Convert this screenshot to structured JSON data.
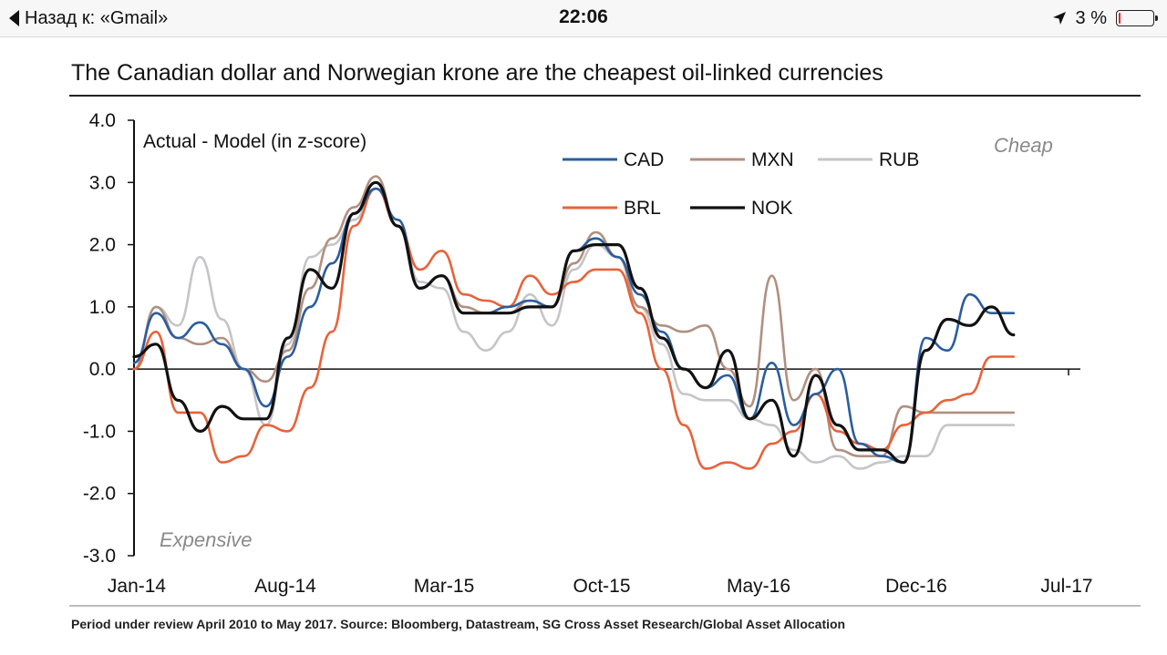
{
  "status_bar": {
    "back_label": "Назад к: «Gmail»",
    "time": "22:06",
    "battery": "3 %",
    "icons": [
      "back-chevron-icon",
      "location-arrow-icon",
      "battery-icon"
    ]
  },
  "chart_data": {
    "type": "line",
    "title": "The Canadian dollar and Norwegian krone are the cheapest oil-linked currencies",
    "ylabel": "Actual - Model (in z-score)",
    "xlabel": "",
    "ylim": [
      -3.0,
      4.0
    ],
    "xlim": [
      "2014-01",
      "2017-07"
    ],
    "y_ticks": [
      "4.0",
      "3.0",
      "2.0",
      "1.0",
      "0.0",
      "-1.0",
      "-2.0",
      "-3.0"
    ],
    "x_ticks": [
      "Jan-14",
      "Aug-14",
      "Mar-15",
      "Oct-15",
      "May-16",
      "Dec-16",
      "Jul-17"
    ],
    "annotations": {
      "top_right": "Cheap",
      "bottom_left": "Expensive"
    },
    "legend_position": "top-right",
    "grid": false,
    "x": [
      "2014-01",
      "2014-02",
      "2014-03",
      "2014-04",
      "2014-05",
      "2014-06",
      "2014-07",
      "2014-08",
      "2014-09",
      "2014-10",
      "2014-11",
      "2014-12",
      "2015-01",
      "2015-02",
      "2015-03",
      "2015-04",
      "2015-05",
      "2015-06",
      "2015-07",
      "2015-08",
      "2015-09",
      "2015-10",
      "2015-11",
      "2015-12",
      "2016-01",
      "2016-02",
      "2016-03",
      "2016-04",
      "2016-05",
      "2016-06",
      "2016-07",
      "2016-08",
      "2016-09",
      "2016-10",
      "2016-11",
      "2016-12",
      "2017-01",
      "2017-02",
      "2017-03",
      "2017-04",
      "2017-05"
    ],
    "series": [
      {
        "name": "CAD",
        "color": "#2a5d9e",
        "values": [
          0.1,
          0.9,
          0.5,
          0.75,
          0.4,
          0.0,
          -0.6,
          0.2,
          1.0,
          1.7,
          2.5,
          2.9,
          2.4,
          1.3,
          1.5,
          0.9,
          0.9,
          1.0,
          1.1,
          1.0,
          1.9,
          2.1,
          1.8,
          1.2,
          0.6,
          0.0,
          -0.3,
          -0.1,
          -0.8,
          0.1,
          -0.9,
          -0.4,
          0.0,
          -1.2,
          -1.4,
          -1.5,
          0.5,
          0.3,
          1.2,
          0.9,
          0.9
        ]
      },
      {
        "name": "MXN",
        "color": "#b09080",
        "values": [
          0.0,
          1.0,
          0.5,
          0.4,
          0.5,
          0.0,
          -0.2,
          0.3,
          1.3,
          2.1,
          2.6,
          3.1,
          2.3,
          1.3,
          1.5,
          1.0,
          0.9,
          0.9,
          1.1,
          1.0,
          1.7,
          2.2,
          1.8,
          1.0,
          0.7,
          0.6,
          0.7,
          0.0,
          -0.6,
          1.5,
          -0.5,
          0.0,
          -1.3,
          -1.4,
          -1.4,
          -0.6,
          -0.7,
          -0.7,
          -0.7,
          -0.7,
          -0.7
        ]
      },
      {
        "name": "RUB",
        "color": "#c5c5c8",
        "values": [
          0.0,
          1.0,
          0.7,
          1.8,
          0.8,
          0.0,
          -0.9,
          0.4,
          1.8,
          2.0,
          2.4,
          2.9,
          2.4,
          1.4,
          1.3,
          0.6,
          0.3,
          0.6,
          1.2,
          0.7,
          1.6,
          2.0,
          1.8,
          1.0,
          0.4,
          -0.4,
          -0.5,
          -0.5,
          -0.8,
          -0.9,
          -1.3,
          -1.5,
          -1.4,
          -1.6,
          -1.5,
          -1.4,
          -1.4,
          -0.9,
          -0.9,
          -0.9,
          -0.9
        ]
      },
      {
        "name": "BRL",
        "color": "#e8623a",
        "values": [
          0.0,
          0.6,
          -0.7,
          -0.7,
          -1.5,
          -1.4,
          -0.9,
          -1.0,
          -0.3,
          0.6,
          2.3,
          2.9,
          2.3,
          1.6,
          1.9,
          1.2,
          1.1,
          1.0,
          1.5,
          1.2,
          1.4,
          1.6,
          1.6,
          0.9,
          0.0,
          -0.9,
          -1.6,
          -1.5,
          -1.6,
          -1.2,
          -1.0,
          -0.4,
          -1.0,
          -1.2,
          -1.3,
          -0.9,
          -0.7,
          -0.5,
          -0.4,
          0.2,
          0.2
        ]
      },
      {
        "name": "NOK",
        "color": "#111111",
        "values": [
          0.2,
          0.4,
          -0.5,
          -1.0,
          -0.6,
          -0.8,
          -0.8,
          0.5,
          1.6,
          1.3,
          2.5,
          3.0,
          2.3,
          1.3,
          1.5,
          0.9,
          0.9,
          0.9,
          1.0,
          1.0,
          1.9,
          2.0,
          2.0,
          1.3,
          0.5,
          0.0,
          -0.3,
          0.3,
          -0.8,
          -0.5,
          -1.4,
          -0.1,
          -0.9,
          -1.3,
          -1.3,
          -1.5,
          0.3,
          0.8,
          0.7,
          1.0,
          0.55
        ]
      }
    ]
  },
  "footnote": "Period under review April 2010 to May 2017. Source: Bloomberg, Datastream, SG Cross Asset Research/Global Asset Allocation"
}
